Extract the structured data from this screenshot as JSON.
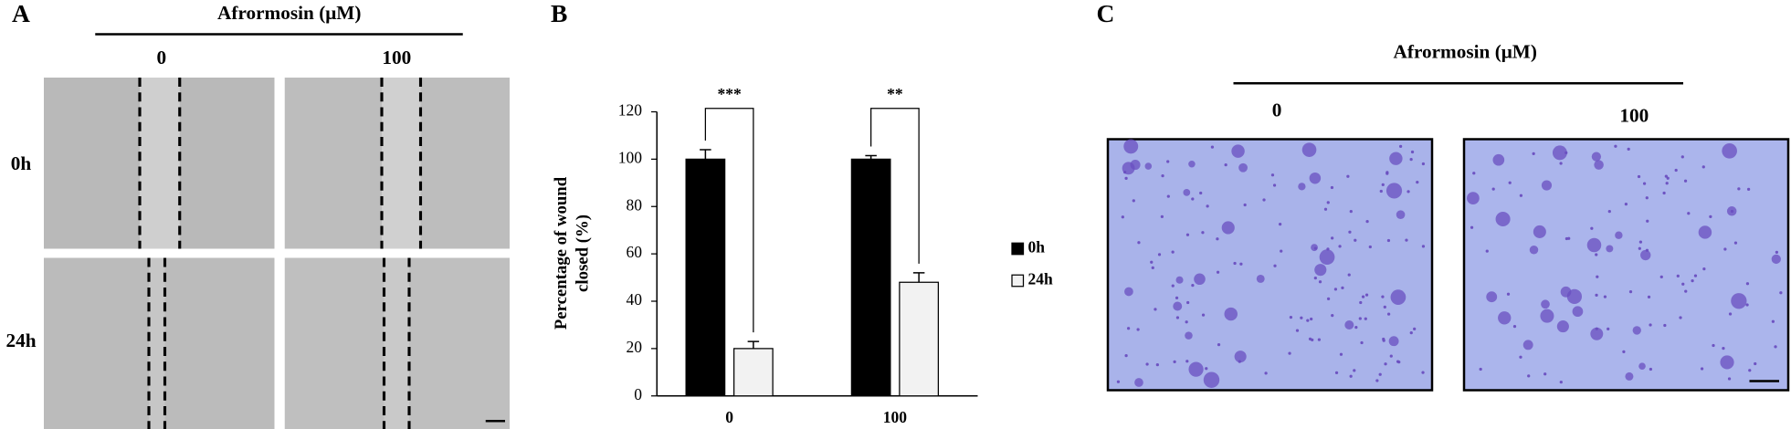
{
  "panel_labels": [
    "A",
    "B",
    "C"
  ],
  "panel_a": {
    "title": "Afrormosin (μM)",
    "columns": [
      "0",
      "100"
    ],
    "rows": [
      "0h",
      "24h"
    ]
  },
  "chart_data": {
    "type": "bar",
    "ylabel": [
      "Percentage of wound",
      "closed (%)"
    ],
    "categories": [
      "0",
      "100"
    ],
    "series": [
      {
        "name": "0h",
        "color": "#000000",
        "values": [
          100,
          100
        ],
        "errors": [
          4,
          1.5
        ]
      },
      {
        "name": "24h",
        "color": "#f2f2f2",
        "values": [
          20,
          48
        ],
        "errors": [
          3,
          4
        ]
      }
    ],
    "ylim": [
      0,
      120
    ],
    "yticks": [
      0,
      20,
      40,
      60,
      80,
      100,
      120
    ],
    "annotations": [
      "***",
      "**"
    ]
  },
  "panel_c": {
    "title": "Afrormosin (μM)",
    "columns": [
      "0",
      "100"
    ]
  }
}
